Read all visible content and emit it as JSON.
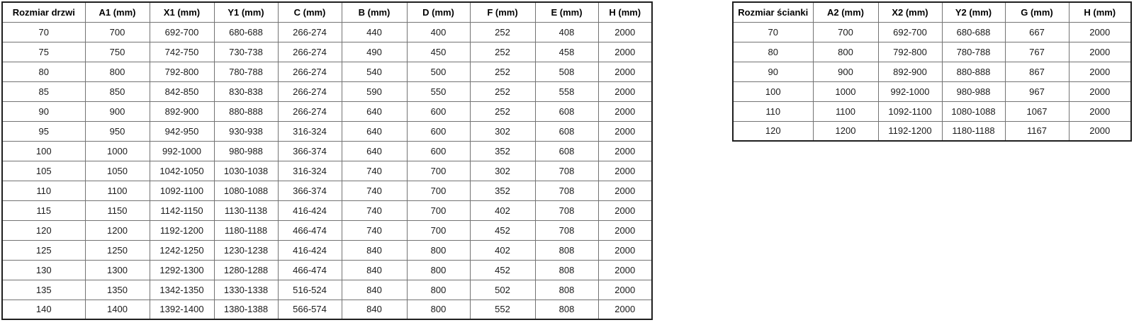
{
  "doors_table": {
    "name": "door-sizes",
    "headers": [
      "Rozmiar drzwi",
      "A1 (mm)",
      "X1 (mm)",
      "Y1 (mm)",
      "C (mm)",
      "B (mm)",
      "D (mm)",
      "F (mm)",
      "E (mm)",
      "H (mm)"
    ],
    "rows": [
      [
        "70",
        "700",
        "692-700",
        "680-688",
        "266-274",
        "440",
        "400",
        "252",
        "408",
        "2000"
      ],
      [
        "75",
        "750",
        "742-750",
        "730-738",
        "266-274",
        "490",
        "450",
        "252",
        "458",
        "2000"
      ],
      [
        "80",
        "800",
        "792-800",
        "780-788",
        "266-274",
        "540",
        "500",
        "252",
        "508",
        "2000"
      ],
      [
        "85",
        "850",
        "842-850",
        "830-838",
        "266-274",
        "590",
        "550",
        "252",
        "558",
        "2000"
      ],
      [
        "90",
        "900",
        "892-900",
        "880-888",
        "266-274",
        "640",
        "600",
        "252",
        "608",
        "2000"
      ],
      [
        "95",
        "950",
        "942-950",
        "930-938",
        "316-324",
        "640",
        "600",
        "302",
        "608",
        "2000"
      ],
      [
        "100",
        "1000",
        "992-1000",
        "980-988",
        "366-374",
        "640",
        "600",
        "352",
        "608",
        "2000"
      ],
      [
        "105",
        "1050",
        "1042-1050",
        "1030-1038",
        "316-324",
        "740",
        "700",
        "302",
        "708",
        "2000"
      ],
      [
        "110",
        "1100",
        "1092-1100",
        "1080-1088",
        "366-374",
        "740",
        "700",
        "352",
        "708",
        "2000"
      ],
      [
        "115",
        "1150",
        "1142-1150",
        "1130-1138",
        "416-424",
        "740",
        "700",
        "402",
        "708",
        "2000"
      ],
      [
        "120",
        "1200",
        "1192-1200",
        "1180-1188",
        "466-474",
        "740",
        "700",
        "452",
        "708",
        "2000"
      ],
      [
        "125",
        "1250",
        "1242-1250",
        "1230-1238",
        "416-424",
        "840",
        "800",
        "402",
        "808",
        "2000"
      ],
      [
        "130",
        "1300",
        "1292-1300",
        "1280-1288",
        "466-474",
        "840",
        "800",
        "452",
        "808",
        "2000"
      ],
      [
        "135",
        "1350",
        "1342-1350",
        "1330-1338",
        "516-524",
        "840",
        "800",
        "502",
        "808",
        "2000"
      ],
      [
        "140",
        "1400",
        "1392-1400",
        "1380-1388",
        "566-574",
        "840",
        "800",
        "552",
        "808",
        "2000"
      ]
    ]
  },
  "wall_table": {
    "name": "wall-panel-sizes",
    "headers": [
      "Rozmiar ścianki",
      "A2 (mm)",
      "X2 (mm)",
      "Y2 (mm)",
      "G (mm)",
      "H (mm)"
    ],
    "rows": [
      [
        "70",
        "700",
        "692-700",
        "680-688",
        "667",
        "2000"
      ],
      [
        "80",
        "800",
        "792-800",
        "780-788",
        "767",
        "2000"
      ],
      [
        "90",
        "900",
        "892-900",
        "880-888",
        "867",
        "2000"
      ],
      [
        "100",
        "1000",
        "992-1000",
        "980-988",
        "967",
        "2000"
      ],
      [
        "110",
        "1100",
        "1092-1100",
        "1080-1088",
        "1067",
        "2000"
      ],
      [
        "120",
        "1200",
        "1192-1200",
        "1180-1188",
        "1167",
        "2000"
      ]
    ]
  },
  "colors": {
    "background": "#ffffff",
    "outer_border": "#1f1f1f",
    "inner_border": "#737373",
    "text": "#000000"
  }
}
